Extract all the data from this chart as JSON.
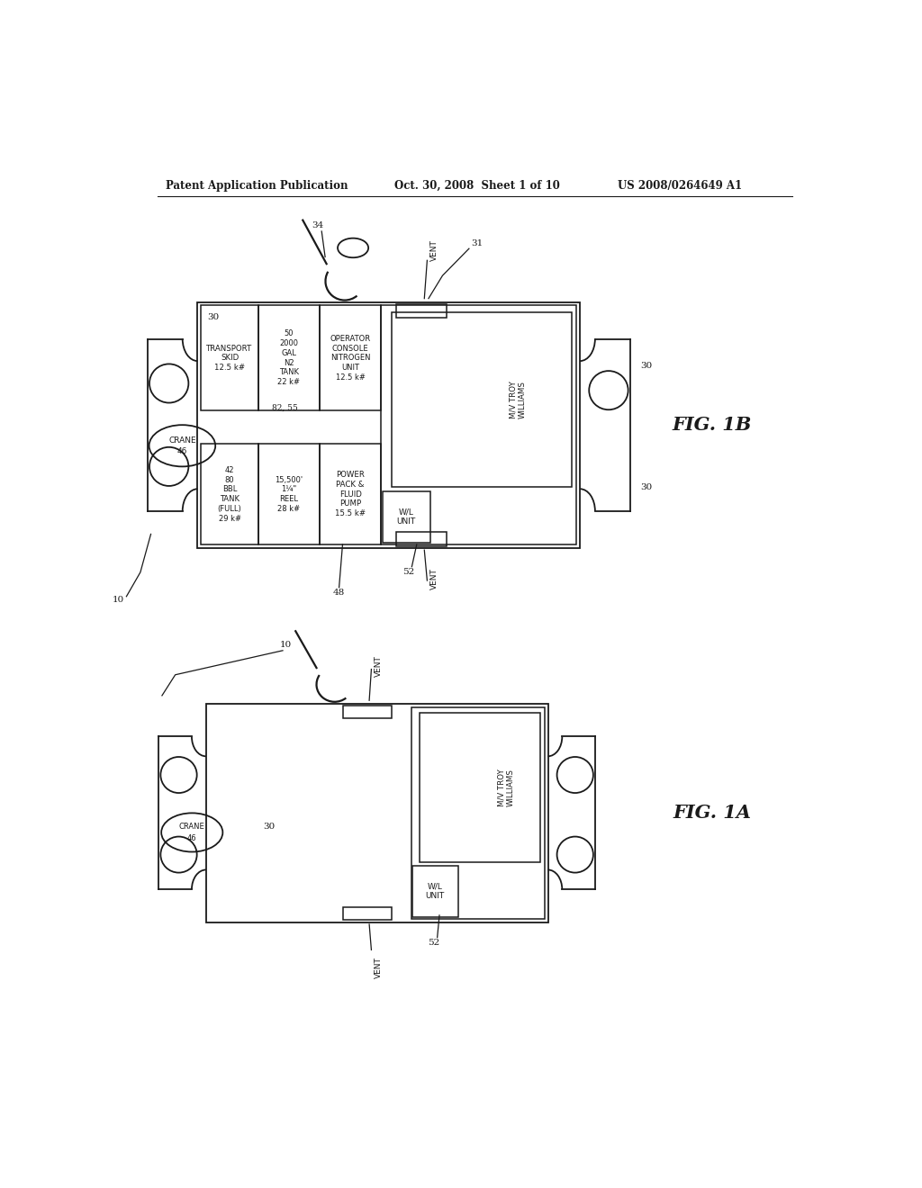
{
  "header_left": "Patent Application Publication",
  "header_center": "Oct. 30, 2008  Sheet 1 of 10",
  "header_right": "US 2008/0264649 A1",
  "fig_label_B": "FIG. 1B",
  "fig_label_A": "FIG. 1A",
  "background": "#ffffff",
  "line_color": "#1a1a1a"
}
